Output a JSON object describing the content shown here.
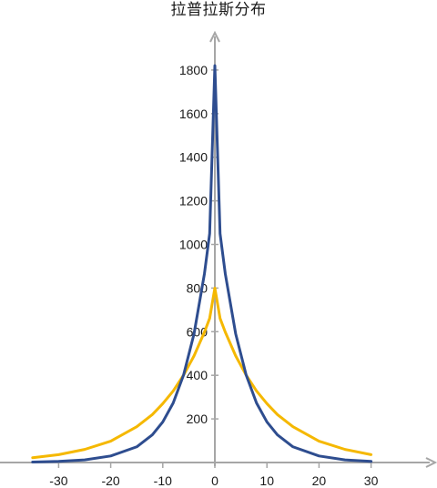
{
  "chart_data": {
    "type": "line",
    "title": "拉普拉斯分布",
    "xlabel": "",
    "ylabel": "",
    "xlim": [
      -36,
      40
    ],
    "ylim": [
      0,
      2000
    ],
    "x_ticks": [
      -30,
      -20,
      -10,
      0,
      10,
      20,
      30
    ],
    "y_ticks": [
      200,
      400,
      600,
      800,
      1000,
      1200,
      1400,
      1600,
      1800
    ],
    "grid": false,
    "legend": "none",
    "series": [
      {
        "color": "#2e4d8f",
        "x": [
          -35,
          -30,
          -25,
          -20,
          -15,
          -12,
          -10,
          -8,
          -6,
          -4,
          -2,
          -1,
          0,
          1,
          2,
          4,
          6,
          8,
          10,
          12,
          15,
          20,
          25,
          30
        ],
        "y": [
          2,
          5,
          12,
          30,
          72,
          127,
          186,
          273,
          402,
          590,
          866,
          1050,
          1820,
          1050,
          866,
          590,
          402,
          273,
          186,
          127,
          72,
          30,
          12,
          5
        ]
      },
      {
        "color": "#f5b800",
        "x": [
          -35,
          -30,
          -25,
          -20,
          -15,
          -12,
          -10,
          -8,
          -6,
          -4,
          -2,
          -1,
          0,
          1,
          2,
          4,
          6,
          8,
          10,
          12,
          15,
          20,
          25,
          30
        ],
        "y": [
          22,
          36,
          60,
          98,
          164,
          220,
          270,
          328,
          401,
          489,
          598,
          661,
          800,
          661,
          598,
          489,
          401,
          328,
          270,
          220,
          164,
          98,
          60,
          36
        ]
      }
    ]
  }
}
